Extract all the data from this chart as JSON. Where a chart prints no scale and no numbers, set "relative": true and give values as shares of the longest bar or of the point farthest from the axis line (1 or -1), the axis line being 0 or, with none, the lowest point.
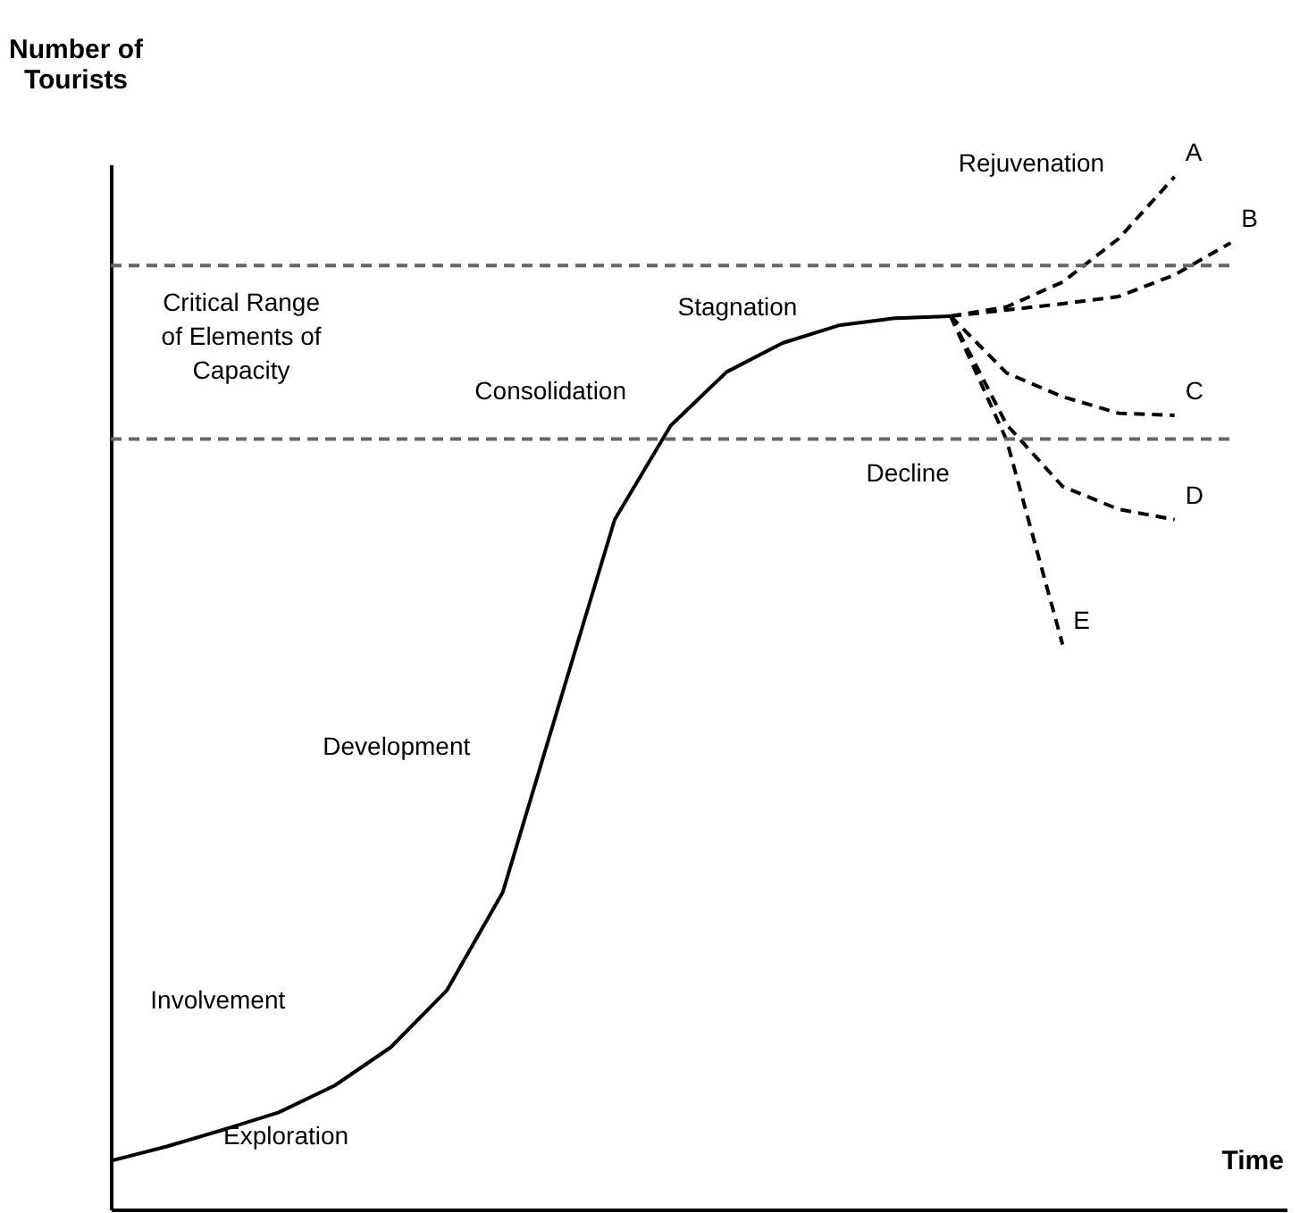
{
  "chart_data": {
    "type": "line",
    "relative": true,
    "xlabel": "Time",
    "ylabel": "Number of\nTourists",
    "grid": false,
    "marker": "none",
    "categories": [
      null,
      null,
      null,
      null,
      null,
      null,
      null,
      null,
      null,
      null,
      null,
      null,
      null,
      null,
      null,
      null,
      null,
      null,
      null,
      null,
      null
    ],
    "series": [
      {
        "color": "#000000",
        "line_style": "solid",
        "values": [
          0.047,
          0.061,
          0.077,
          0.094,
          0.12,
          0.157,
          0.212,
          0.307,
          0.488,
          0.668,
          0.759,
          0.811,
          0.839,
          0.856,
          0.863,
          0.865,
          null,
          null,
          null,
          null,
          null
        ]
      },
      {
        "name": "A",
        "color": "#000000",
        "line_style": "dashed",
        "values": [
          null,
          null,
          null,
          null,
          null,
          null,
          null,
          null,
          null,
          null,
          null,
          null,
          null,
          null,
          null,
          0.865,
          0.874,
          0.898,
          0.94,
          1,
          null
        ]
      },
      {
        "name": "B",
        "color": "#000000",
        "line_style": "dashed",
        "values": [
          null,
          null,
          null,
          null,
          null,
          null,
          null,
          null,
          null,
          null,
          null,
          null,
          null,
          null,
          null,
          0.865,
          0.871,
          0.877,
          0.884,
          0.905,
          0.936
        ]
      },
      {
        "name": "C",
        "color": "#000000",
        "line_style": "dashed",
        "values": [
          null,
          null,
          null,
          null,
          null,
          null,
          null,
          null,
          null,
          null,
          null,
          null,
          null,
          null,
          null,
          0.865,
          0.81,
          0.787,
          0.771,
          0.769,
          null
        ]
      },
      {
        "name": "D",
        "color": "#000000",
        "line_style": "dashed",
        "values": [
          null,
          null,
          null,
          null,
          null,
          null,
          null,
          null,
          null,
          null,
          null,
          null,
          null,
          null,
          null,
          0.865,
          0.76,
          0.7,
          0.678,
          0.668,
          null
        ]
      },
      {
        "name": "E",
        "color": "#000000",
        "line_style": "dashed",
        "values": [
          null,
          null,
          null,
          null,
          null,
          null,
          null,
          null,
          null,
          null,
          null,
          null,
          null,
          null,
          null,
          0.865,
          0.745,
          0.547,
          null,
          null,
          null
        ]
      },
      {
        "color": "#666666",
        "line_style": "dashed",
        "values": [
          0.914,
          0.914,
          0.914,
          0.914,
          0.914,
          0.914,
          0.914,
          0.914,
          0.914,
          0.914,
          0.914,
          0.914,
          0.914,
          0.914,
          0.914,
          0.914,
          0.914,
          0.914,
          0.914,
          0.914,
          0.914
        ]
      },
      {
        "color": "#666666",
        "line_style": "dashed",
        "values": [
          0.746,
          0.746,
          0.746,
          0.746,
          0.746,
          0.746,
          0.746,
          0.746,
          0.746,
          0.746,
          0.746,
          0.746,
          0.746,
          0.746,
          0.746,
          0.746,
          0.746,
          0.746,
          0.746,
          0.746,
          0.746
        ]
      }
    ],
    "annotations": [
      "Critical Range\nof Elements of\nCapacity",
      "Rejuvenation",
      "Stagnation",
      "Consolidation",
      "Decline",
      "Development",
      "Involvement",
      "Exploration"
    ]
  }
}
